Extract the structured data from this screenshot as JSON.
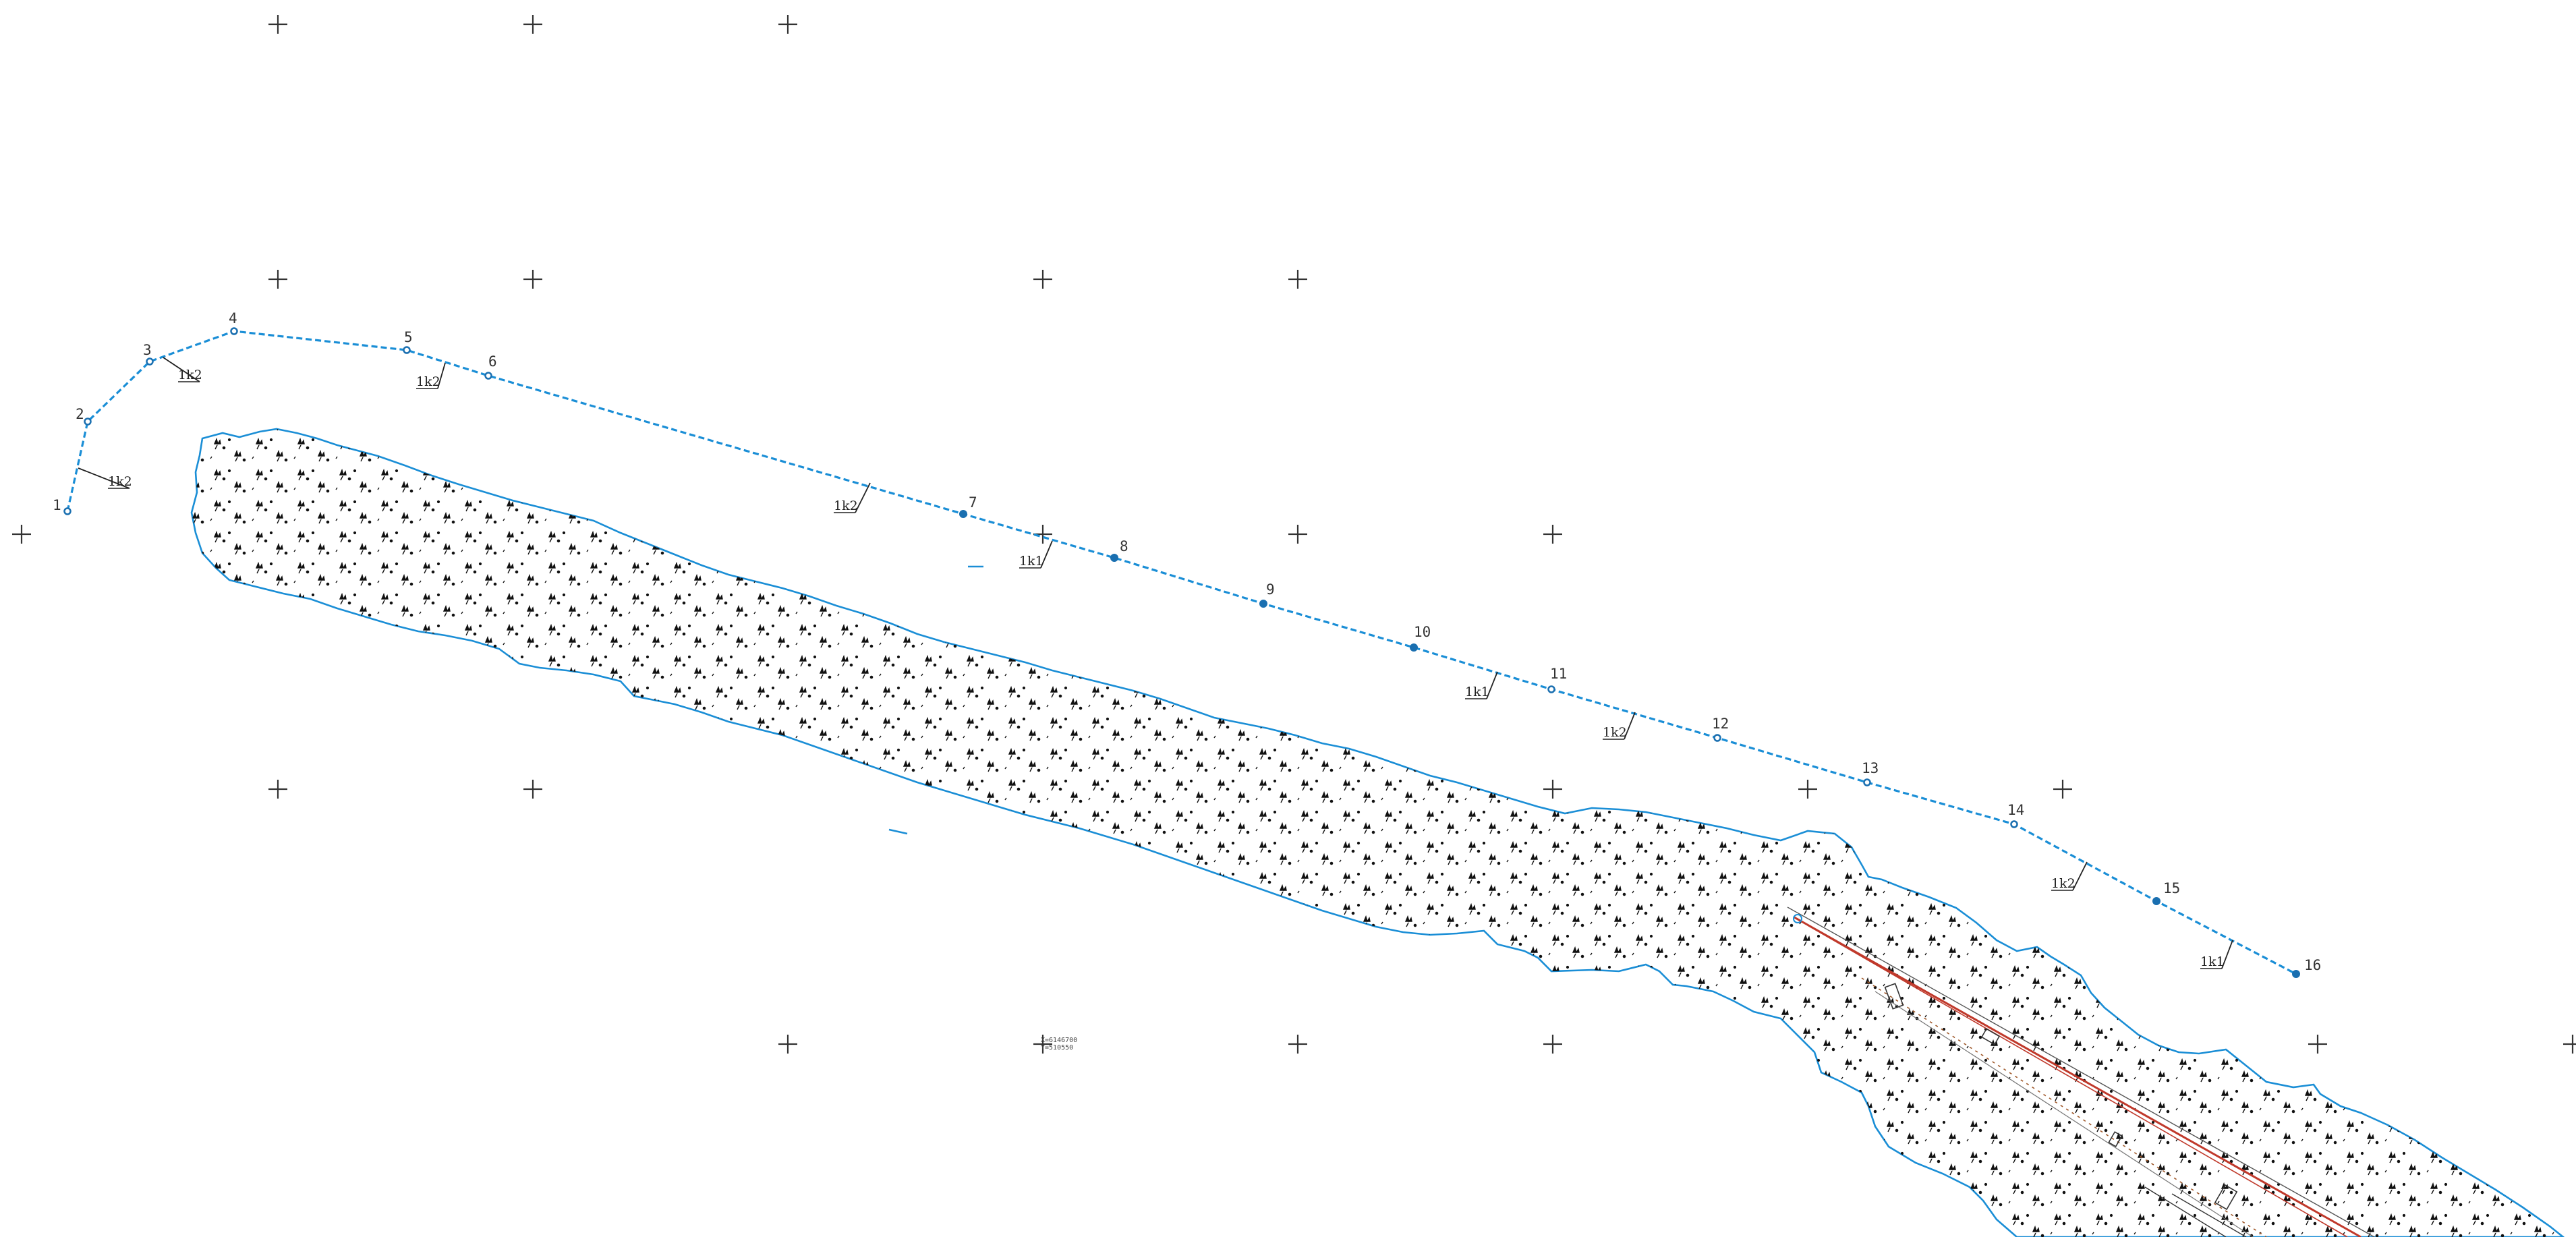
{
  "map": {
    "route": {
      "color": "#1a8ed6",
      "points": [
        {
          "id": "1",
          "label": "1"
        },
        {
          "id": "2",
          "label": "2"
        },
        {
          "id": "3",
          "label": "3"
        },
        {
          "id": "4",
          "label": "4"
        },
        {
          "id": "5",
          "label": "5"
        },
        {
          "id": "6",
          "label": "6"
        },
        {
          "id": "7",
          "label": "7"
        },
        {
          "id": "8",
          "label": "8"
        },
        {
          "id": "9",
          "label": "9"
        },
        {
          "id": "10",
          "label": "10"
        },
        {
          "id": "11",
          "label": "11"
        },
        {
          "id": "12",
          "label": "12"
        },
        {
          "id": "13",
          "label": "13"
        },
        {
          "id": "14",
          "label": "14"
        },
        {
          "id": "15",
          "label": "15"
        },
        {
          "id": "16",
          "label": "16"
        }
      ]
    },
    "class_labels": [
      {
        "text": "1k2"
      },
      {
        "text": "1k2"
      },
      {
        "text": "1k2"
      },
      {
        "text": "1k2"
      },
      {
        "text": "1k1"
      },
      {
        "text": "1k1"
      },
      {
        "text": "1k2"
      },
      {
        "text": "1k2"
      },
      {
        "text": "1k1"
      }
    ],
    "grid_note": {
      "line1": "X=6146700",
      "line2": "Y=510550"
    },
    "vegetation_area": {
      "outline_color": "#1a8ed6",
      "fill_symbol": "marsh-grass-symbol"
    },
    "railway_color": "#c0392b",
    "grid_color": "#333333"
  }
}
